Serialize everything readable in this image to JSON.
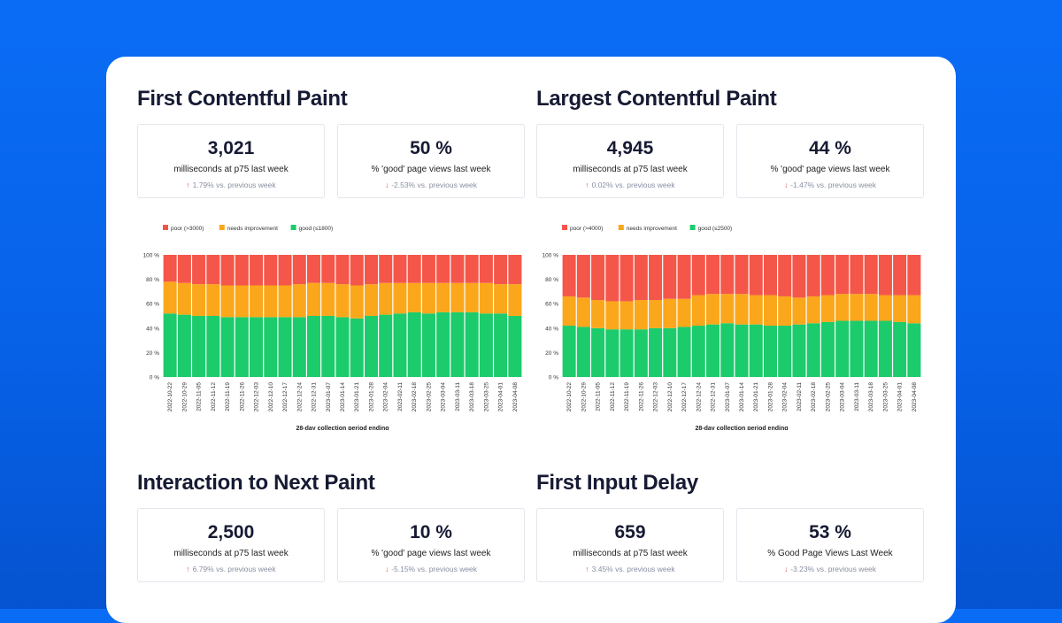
{
  "colors": {
    "poor": "#f5564a",
    "needs": "#fba71b",
    "good": "#1ccb6c"
  },
  "sections": [
    {
      "title": "First Contentful Paint",
      "kpis": [
        {
          "value": "3,021",
          "label": "milliseconds at p75 last week",
          "delta": "1.79% vs. previous week",
          "direction": "up"
        },
        {
          "value": "50 %",
          "label": "% 'good' page views last week",
          "delta": "-2.53% vs. previous week",
          "direction": "down"
        }
      ]
    },
    {
      "title": "Largest Contentful Paint",
      "kpis": [
        {
          "value": "4,945",
          "label": "milliseconds at p75 last week",
          "delta": "0.02% vs. previous week",
          "direction": "up"
        },
        {
          "value": "44 %",
          "label": "% 'good' page views last week",
          "delta": "-1.47% vs. previous week",
          "direction": "down"
        }
      ]
    },
    {
      "title": "Interaction to Next Paint",
      "kpis": [
        {
          "value": "2,500",
          "label": "milliseconds at p75 last week",
          "delta": "6.79% vs. previous week",
          "direction": "up"
        },
        {
          "value": "10 %",
          "label": "% 'good' page views last week",
          "delta": "-5.15% vs. previous week",
          "direction": "down"
        }
      ]
    },
    {
      "title": "First Input Delay",
      "kpis": [
        {
          "value": "659",
          "label": "milliseconds at p75 last week",
          "delta": "3.45% vs. previous week",
          "direction": "up"
        },
        {
          "value": "53 %",
          "label": "% Good Page Views Last Week",
          "delta": "-3.23% vs. previous week",
          "direction": "down"
        }
      ]
    }
  ],
  "chart_data": [
    {
      "type": "bar",
      "stacked": true,
      "legend": [
        "poor (>3000)",
        "needs improvement",
        "good (≤1800)"
      ],
      "xlabel": "28-day collection period ending",
      "ylabel": "",
      "ylim": [
        0,
        100
      ],
      "yticks": [
        "0 %",
        "20 %",
        "40 %",
        "60 %",
        "80 %",
        "100 %"
      ],
      "categories": [
        "2022-10-22",
        "2022-10-29",
        "2022-11-05",
        "2022-11-12",
        "2022-11-19",
        "2022-11-26",
        "2022-12-03",
        "2022-12-10",
        "2022-12-17",
        "2022-12-24",
        "2022-12-31",
        "2023-01-07",
        "2023-01-14",
        "2023-01-21",
        "2023-01-28",
        "2023-02-04",
        "2023-02-11",
        "2023-02-18",
        "2023-02-25",
        "2023-03-04",
        "2023-03-11",
        "2023-03-18",
        "2023-03-25",
        "2023-04-01",
        "2023-04-08"
      ],
      "series": [
        {
          "name": "good",
          "values": [
            52,
            51,
            50,
            50,
            49,
            49,
            49,
            49,
            49,
            49,
            50,
            50,
            49,
            48,
            50,
            51,
            52,
            53,
            52,
            53,
            53,
            53,
            52,
            52,
            50
          ]
        },
        {
          "name": "needs improvement",
          "values": [
            26,
            26,
            26,
            26,
            26,
            26,
            26,
            26,
            26,
            27,
            27,
            27,
            27,
            27,
            26,
            26,
            25,
            24,
            25,
            24,
            24,
            24,
            25,
            24,
            26
          ]
        },
        {
          "name": "poor",
          "values": [
            22,
            23,
            24,
            24,
            25,
            25,
            25,
            25,
            25,
            24,
            23,
            23,
            24,
            25,
            24,
            23,
            23,
            23,
            23,
            23,
            23,
            23,
            23,
            24,
            24
          ]
        }
      ]
    },
    {
      "type": "bar",
      "stacked": true,
      "legend": [
        "poor (>4000)",
        "needs improvement",
        "good (≤2500)"
      ],
      "xlabel": "28-day collection period ending",
      "ylabel": "",
      "ylim": [
        0,
        100
      ],
      "yticks": [
        "0 %",
        "20 %",
        "40 %",
        "60 %",
        "80 %",
        "100 %"
      ],
      "categories": [
        "2022-10-22",
        "2022-10-29",
        "2022-11-05",
        "2022-11-12",
        "2022-11-19",
        "2022-11-26",
        "2022-12-03",
        "2022-12-10",
        "2022-12-17",
        "2022-12-24",
        "2022-12-31",
        "2023-01-07",
        "2023-01-14",
        "2023-01-21",
        "2023-01-28",
        "2023-02-04",
        "2023-02-11",
        "2023-02-18",
        "2023-02-25",
        "2023-03-04",
        "2023-03-11",
        "2023-03-18",
        "2023-03-25",
        "2023-04-01",
        "2023-04-08"
      ],
      "series": [
        {
          "name": "good",
          "values": [
            42,
            41,
            40,
            39,
            39,
            39,
            40,
            40,
            41,
            42,
            43,
            44,
            43,
            43,
            42,
            42,
            43,
            44,
            45,
            46,
            46,
            46,
            46,
            45,
            44
          ]
        },
        {
          "name": "needs improvement",
          "values": [
            24,
            24,
            23,
            23,
            23,
            24,
            23,
            24,
            23,
            25,
            25,
            24,
            25,
            24,
            25,
            24,
            22,
            22,
            22,
            22,
            22,
            22,
            21,
            22,
            23
          ]
        },
        {
          "name": "poor",
          "values": [
            34,
            35,
            37,
            38,
            38,
            37,
            37,
            36,
            36,
            33,
            32,
            32,
            32,
            33,
            33,
            34,
            35,
            34,
            33,
            32,
            32,
            32,
            33,
            33,
            33
          ]
        }
      ]
    }
  ]
}
